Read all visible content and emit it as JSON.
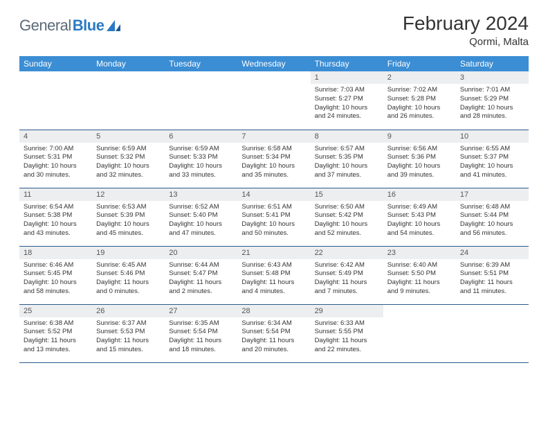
{
  "brand": {
    "name_a": "General",
    "name_b": "Blue"
  },
  "title": "February 2024",
  "location": "Qormi, Malta",
  "colors": {
    "header_bg": "#3b8dd4",
    "header_text": "#ffffff",
    "daynum_bg": "#eceef0",
    "border": "#2a5a8a",
    "logo_gray": "#5a6a78",
    "logo_blue": "#2a7ac2"
  },
  "weekdays": [
    "Sunday",
    "Monday",
    "Tuesday",
    "Wednesday",
    "Thursday",
    "Friday",
    "Saturday"
  ],
  "weeks": [
    [
      {
        "empty": true
      },
      {
        "empty": true
      },
      {
        "empty": true
      },
      {
        "empty": true
      },
      {
        "num": "1",
        "sunrise": "Sunrise: 7:03 AM",
        "sunset": "Sunset: 5:27 PM",
        "daylight": "Daylight: 10 hours and 24 minutes."
      },
      {
        "num": "2",
        "sunrise": "Sunrise: 7:02 AM",
        "sunset": "Sunset: 5:28 PM",
        "daylight": "Daylight: 10 hours and 26 minutes."
      },
      {
        "num": "3",
        "sunrise": "Sunrise: 7:01 AM",
        "sunset": "Sunset: 5:29 PM",
        "daylight": "Daylight: 10 hours and 28 minutes."
      }
    ],
    [
      {
        "num": "4",
        "sunrise": "Sunrise: 7:00 AM",
        "sunset": "Sunset: 5:31 PM",
        "daylight": "Daylight: 10 hours and 30 minutes."
      },
      {
        "num": "5",
        "sunrise": "Sunrise: 6:59 AM",
        "sunset": "Sunset: 5:32 PM",
        "daylight": "Daylight: 10 hours and 32 minutes."
      },
      {
        "num": "6",
        "sunrise": "Sunrise: 6:59 AM",
        "sunset": "Sunset: 5:33 PM",
        "daylight": "Daylight: 10 hours and 33 minutes."
      },
      {
        "num": "7",
        "sunrise": "Sunrise: 6:58 AM",
        "sunset": "Sunset: 5:34 PM",
        "daylight": "Daylight: 10 hours and 35 minutes."
      },
      {
        "num": "8",
        "sunrise": "Sunrise: 6:57 AM",
        "sunset": "Sunset: 5:35 PM",
        "daylight": "Daylight: 10 hours and 37 minutes."
      },
      {
        "num": "9",
        "sunrise": "Sunrise: 6:56 AM",
        "sunset": "Sunset: 5:36 PM",
        "daylight": "Daylight: 10 hours and 39 minutes."
      },
      {
        "num": "10",
        "sunrise": "Sunrise: 6:55 AM",
        "sunset": "Sunset: 5:37 PM",
        "daylight": "Daylight: 10 hours and 41 minutes."
      }
    ],
    [
      {
        "num": "11",
        "sunrise": "Sunrise: 6:54 AM",
        "sunset": "Sunset: 5:38 PM",
        "daylight": "Daylight: 10 hours and 43 minutes."
      },
      {
        "num": "12",
        "sunrise": "Sunrise: 6:53 AM",
        "sunset": "Sunset: 5:39 PM",
        "daylight": "Daylight: 10 hours and 45 minutes."
      },
      {
        "num": "13",
        "sunrise": "Sunrise: 6:52 AM",
        "sunset": "Sunset: 5:40 PM",
        "daylight": "Daylight: 10 hours and 47 minutes."
      },
      {
        "num": "14",
        "sunrise": "Sunrise: 6:51 AM",
        "sunset": "Sunset: 5:41 PM",
        "daylight": "Daylight: 10 hours and 50 minutes."
      },
      {
        "num": "15",
        "sunrise": "Sunrise: 6:50 AM",
        "sunset": "Sunset: 5:42 PM",
        "daylight": "Daylight: 10 hours and 52 minutes."
      },
      {
        "num": "16",
        "sunrise": "Sunrise: 6:49 AM",
        "sunset": "Sunset: 5:43 PM",
        "daylight": "Daylight: 10 hours and 54 minutes."
      },
      {
        "num": "17",
        "sunrise": "Sunrise: 6:48 AM",
        "sunset": "Sunset: 5:44 PM",
        "daylight": "Daylight: 10 hours and 56 minutes."
      }
    ],
    [
      {
        "num": "18",
        "sunrise": "Sunrise: 6:46 AM",
        "sunset": "Sunset: 5:45 PM",
        "daylight": "Daylight: 10 hours and 58 minutes."
      },
      {
        "num": "19",
        "sunrise": "Sunrise: 6:45 AM",
        "sunset": "Sunset: 5:46 PM",
        "daylight": "Daylight: 11 hours and 0 minutes."
      },
      {
        "num": "20",
        "sunrise": "Sunrise: 6:44 AM",
        "sunset": "Sunset: 5:47 PM",
        "daylight": "Daylight: 11 hours and 2 minutes."
      },
      {
        "num": "21",
        "sunrise": "Sunrise: 6:43 AM",
        "sunset": "Sunset: 5:48 PM",
        "daylight": "Daylight: 11 hours and 4 minutes."
      },
      {
        "num": "22",
        "sunrise": "Sunrise: 6:42 AM",
        "sunset": "Sunset: 5:49 PM",
        "daylight": "Daylight: 11 hours and 7 minutes."
      },
      {
        "num": "23",
        "sunrise": "Sunrise: 6:40 AM",
        "sunset": "Sunset: 5:50 PM",
        "daylight": "Daylight: 11 hours and 9 minutes."
      },
      {
        "num": "24",
        "sunrise": "Sunrise: 6:39 AM",
        "sunset": "Sunset: 5:51 PM",
        "daylight": "Daylight: 11 hours and 11 minutes."
      }
    ],
    [
      {
        "num": "25",
        "sunrise": "Sunrise: 6:38 AM",
        "sunset": "Sunset: 5:52 PM",
        "daylight": "Daylight: 11 hours and 13 minutes."
      },
      {
        "num": "26",
        "sunrise": "Sunrise: 6:37 AM",
        "sunset": "Sunset: 5:53 PM",
        "daylight": "Daylight: 11 hours and 15 minutes."
      },
      {
        "num": "27",
        "sunrise": "Sunrise: 6:35 AM",
        "sunset": "Sunset: 5:54 PM",
        "daylight": "Daylight: 11 hours and 18 minutes."
      },
      {
        "num": "28",
        "sunrise": "Sunrise: 6:34 AM",
        "sunset": "Sunset: 5:54 PM",
        "daylight": "Daylight: 11 hours and 20 minutes."
      },
      {
        "num": "29",
        "sunrise": "Sunrise: 6:33 AM",
        "sunset": "Sunset: 5:55 PM",
        "daylight": "Daylight: 11 hours and 22 minutes."
      },
      {
        "empty": true
      },
      {
        "empty": true
      }
    ]
  ]
}
